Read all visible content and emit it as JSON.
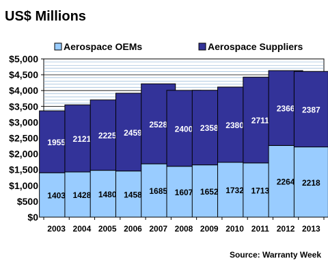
{
  "chart_data": {
    "type": "bar",
    "stacked": true,
    "title": "US$ Millions",
    "source": "Source: Warranty Week",
    "categories": [
      "2003",
      "2004",
      "2005",
      "2006",
      "2007",
      "2008",
      "2009",
      "2010",
      "2011",
      "2012",
      "2013"
    ],
    "series": [
      {
        "name": "Aerospace OEMs",
        "color": "#99ccff",
        "values": [
          1403,
          1428,
          1480,
          1458,
          1685,
          1607,
          1652,
          1732,
          1713,
          2264,
          2218
        ]
      },
      {
        "name": "Aerospace Suppliers",
        "color": "#333399",
        "values": [
          1955,
          2121,
          2225,
          2459,
          2528,
          2400,
          2358,
          2380,
          2711,
          2366,
          2387
        ]
      }
    ],
    "y_ticks": [
      "$0",
      "$500",
      "$1,000",
      "$1,500",
      "$2,000",
      "$2,500",
      "$3,000",
      "$3,500",
      "$4,000",
      "$4,500",
      "$5,000"
    ],
    "ylim": [
      0,
      5000
    ],
    "grid": true,
    "legend_position": "top"
  }
}
